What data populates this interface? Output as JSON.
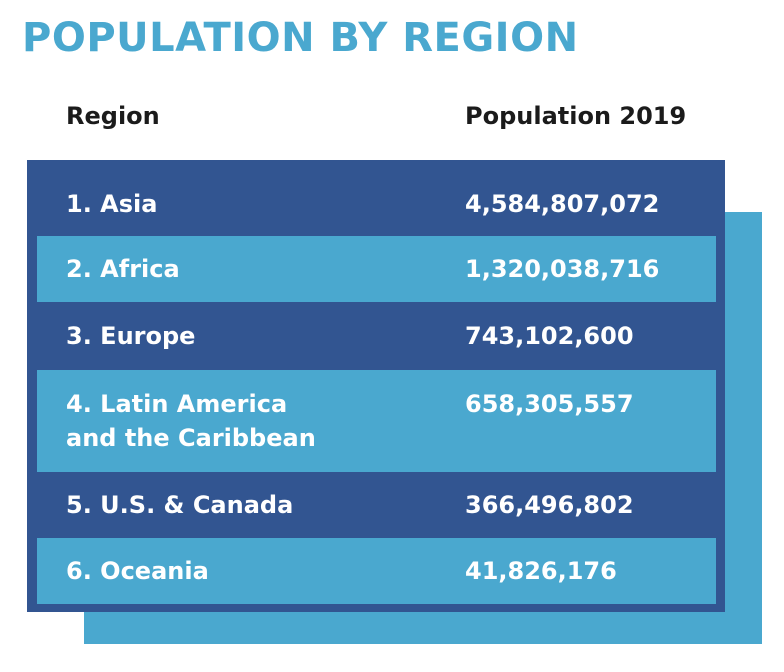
{
  "title": "POPULATION BY REGION",
  "chart_data": {
    "type": "table",
    "title": "POPULATION BY REGION",
    "columns": [
      "Region",
      "Population 2019"
    ],
    "rows": [
      {
        "region": "1. Asia",
        "population": "4,584,807,072",
        "value": 4584807072
      },
      {
        "region": "2. Africa",
        "population": "1,320,038,716",
        "value": 1320038716
      },
      {
        "region": "3. Europe",
        "population": "743,102,600",
        "value": 743102600
      },
      {
        "region": "4. Latin America\nand the Caribbean",
        "population": "658,305,557",
        "value": 658305557
      },
      {
        "region": "5. U.S. & Canada",
        "population": "366,496,802",
        "value": 366496802
      },
      {
        "region": "6. Oceania",
        "population": "41,826,176",
        "value": 41826176
      }
    ]
  },
  "colors": {
    "title": "#4aa8cf",
    "dark_row": "#325591",
    "light_row": "#4aa8cf",
    "shadow": "#4aa8cf",
    "header_text": "#1b1b1b",
    "cell_text": "#ffffff"
  }
}
